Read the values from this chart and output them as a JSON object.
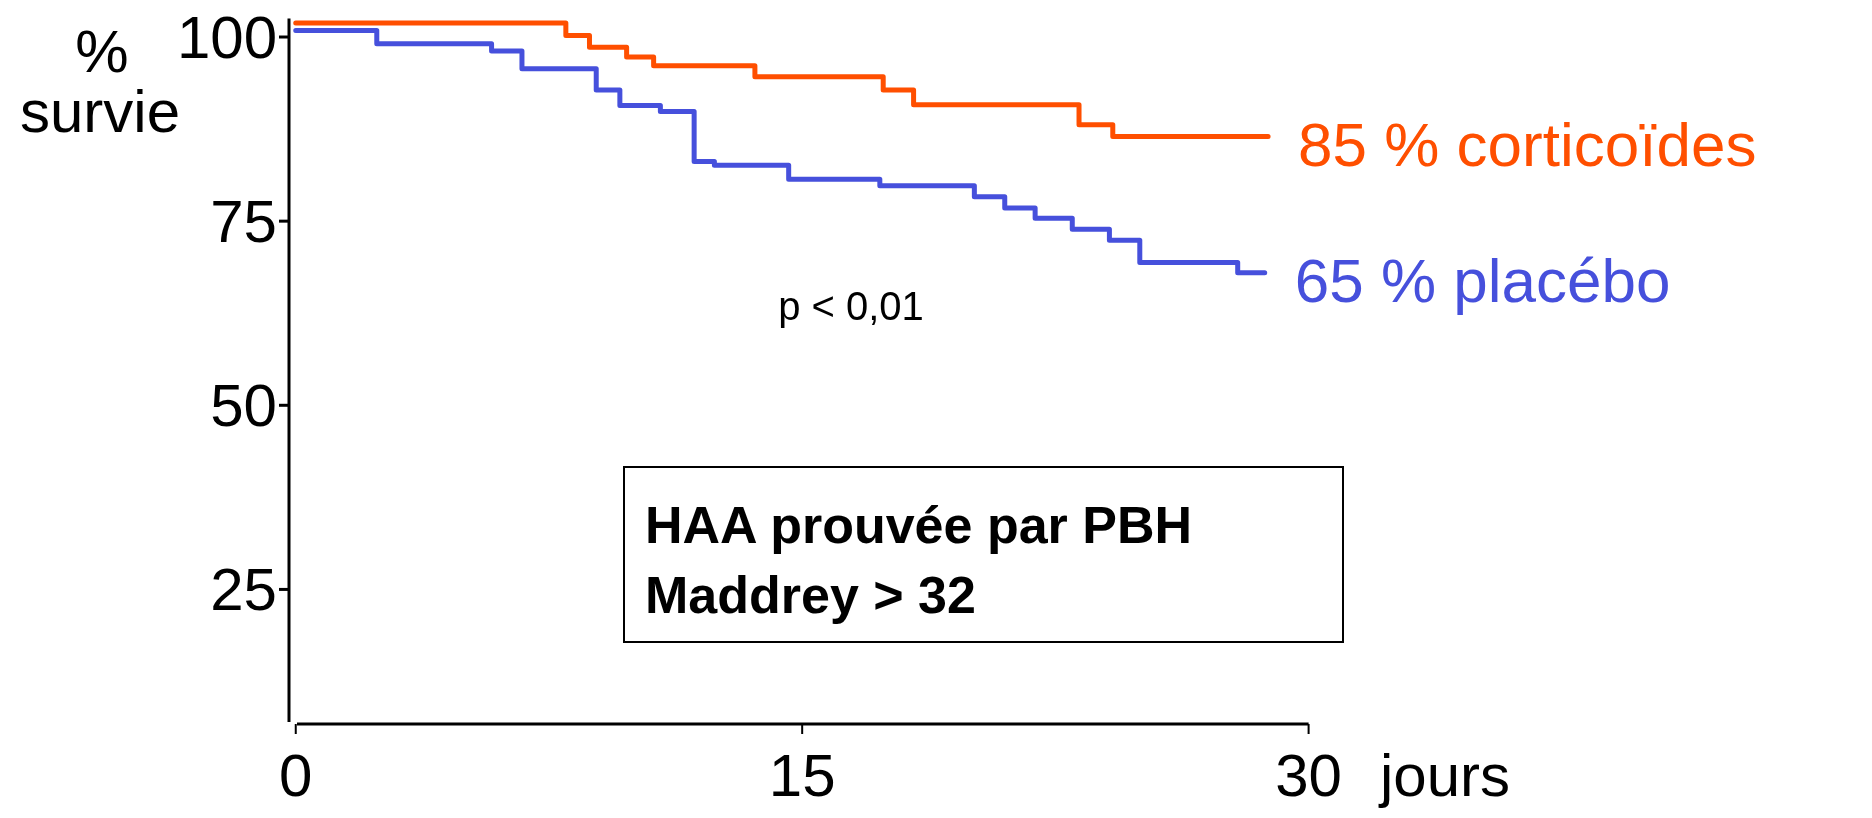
{
  "chart_data": {
    "type": "step",
    "ylabel": "% survie",
    "xlabel": "jours",
    "xlim": [
      -0.2,
      30
    ],
    "xticks": [
      0,
      15,
      30
    ],
    "ylim": [
      7,
      102.5
    ],
    "yticks": [
      25,
      50,
      75,
      100
    ],
    "line_style": "solid",
    "series": [
      {
        "name": "85 % corticoïdes",
        "color": "#ff4f00",
        "x": [
          0,
          8.0,
          8.7,
          9.8,
          10.6,
          13.6,
          17.4,
          18.3,
          23.2,
          24.2,
          28.8
        ],
        "values": [
          101.9,
          100.2,
          98.6,
          97.3,
          96.1,
          94.6,
          92.8,
          90.8,
          88.1,
          86.5,
          86.5
        ]
      },
      {
        "name": "65 % placébo",
        "color": "#4650dc",
        "x": [
          0,
          2.4,
          5.8,
          6.7,
          8.9,
          9.6,
          10.8,
          11.8,
          12.4,
          14.6,
          17.3,
          20.1,
          21.0,
          21.9,
          23.0,
          24.1,
          25.0,
          27.9,
          28.7
        ],
        "values": [
          100.9,
          99.1,
          98.1,
          95.7,
          92.8,
          90.7,
          89.9,
          83.1,
          82.6,
          80.7,
          79.8,
          78.3,
          76.8,
          75.4,
          73.9,
          72.4,
          69.4,
          68.0,
          68.0
        ]
      }
    ],
    "annotations": [
      "p < 0,01",
      "HAA prouvée par PBH\nMaddrey > 32"
    ]
  }
}
